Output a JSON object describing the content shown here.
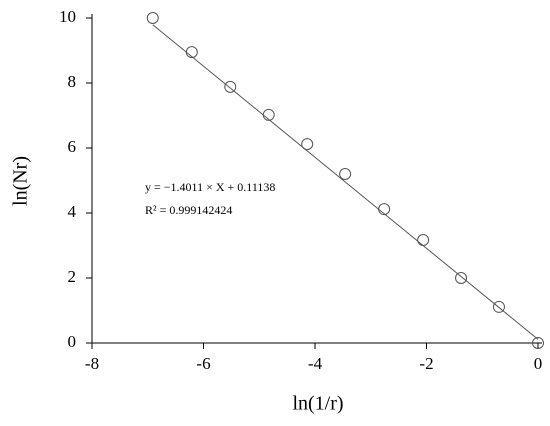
{
  "chart_data": {
    "type": "scatter",
    "x_label": "ln(1/r)",
    "y_label": "ln(Nr)",
    "x": [
      -6.91,
      -6.21,
      -5.52,
      -4.83,
      -4.14,
      -3.46,
      -2.76,
      -2.06,
      -1.38,
      -0.7,
      0
    ],
    "series": [
      {
        "color": "#555555",
        "values": [
          10.0,
          8.95,
          7.88,
          7.02,
          6.12,
          5.2,
          4.12,
          3.17,
          2.0,
          1.11,
          0
        ]
      }
    ],
    "fit": {
      "slope": -1.4011,
      "intercept": 0.11138,
      "color": "#555555"
    },
    "annotations": [
      "y = −1.4011 × X +  0.11138",
      "R² = 0.999142424"
    ],
    "xlim": [
      -8,
      0
    ],
    "xticks": [
      -8,
      -6,
      -4,
      -2,
      0
    ],
    "ylim": [
      0,
      10
    ],
    "yticks": [
      0,
      2,
      4,
      6,
      8,
      10
    ]
  }
}
